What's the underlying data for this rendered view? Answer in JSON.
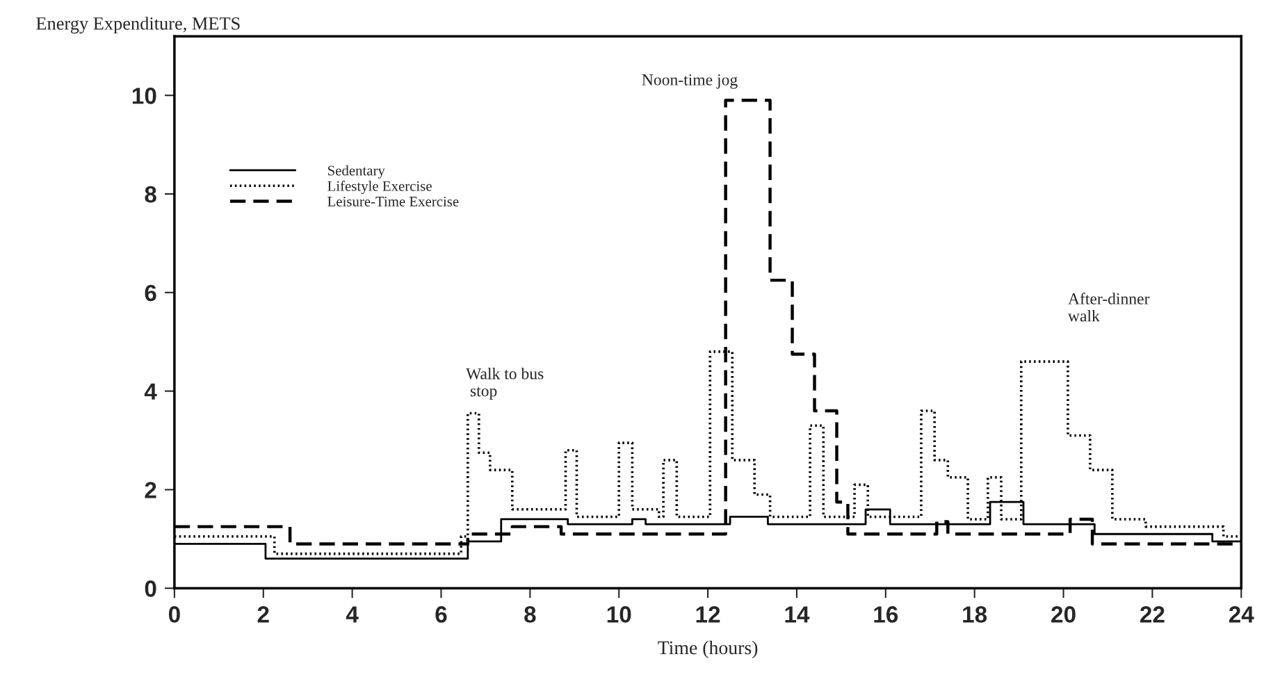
{
  "chart_data": {
    "type": "step",
    "ylabel": "Energy Expenditure, METS",
    "xlabel": "Time (hours)",
    "xlim": [
      0,
      24
    ],
    "xticks": [
      0,
      2,
      4,
      6,
      8,
      10,
      12,
      14,
      16,
      18,
      20,
      22,
      24
    ],
    "ylim": [
      0,
      11.2
    ],
    "yticks": [
      0,
      2,
      4,
      6,
      8,
      10
    ],
    "grid": false,
    "legend": "top left",
    "marker": "none",
    "series": [
      {
        "name": "Sedentary",
        "color": "#000000",
        "line_style": "solid",
        "x": [
          0,
          2.05,
          6.6,
          7.35,
          8.85,
          10.3,
          10.6,
          12.5,
          13.35,
          15.55,
          16.1,
          18.35,
          19.1,
          20.7,
          23.35,
          24
        ],
        "values": [
          0.9,
          0.6,
          0.95,
          1.4,
          1.3,
          1.4,
          1.3,
          1.45,
          1.3,
          1.6,
          1.3,
          1.75,
          1.3,
          1.1,
          0.95,
          0.95
        ]
      },
      {
        "name": "Lifestyle Exercise",
        "color": "#000000",
        "line_style": "dotted",
        "x": [
          0,
          2.25,
          6.45,
          6.6,
          6.85,
          7.1,
          7.6,
          8.8,
          9.05,
          10.0,
          10.3,
          10.9,
          11.0,
          11.3,
          12.05,
          12.55,
          13.05,
          13.4,
          14.3,
          14.6,
          15.3,
          15.6,
          16.8,
          17.1,
          17.4,
          17.85,
          18.3,
          18.6,
          19.05,
          20.1,
          20.6,
          21.1,
          21.85,
          23.6,
          24
        ],
        "values": [
          1.05,
          0.7,
          1.05,
          3.55,
          2.75,
          2.4,
          1.6,
          2.8,
          1.45,
          2.95,
          1.6,
          1.45,
          2.6,
          1.45,
          4.8,
          2.6,
          1.9,
          1.45,
          3.3,
          1.45,
          2.1,
          1.45,
          3.6,
          2.6,
          2.25,
          1.4,
          2.25,
          1.4,
          4.6,
          3.1,
          2.4,
          1.4,
          1.25,
          1.05,
          1.05
        ]
      },
      {
        "name": "Leisure-Time Exercise",
        "color": "#000000",
        "line_style": "dashed",
        "x": [
          0,
          2.6,
          6.6,
          7.6,
          8.7,
          12.4,
          13.4,
          13.9,
          14.4,
          14.9,
          15.15,
          17.15,
          17.4,
          20.15,
          20.65,
          24
        ],
        "values": [
          1.25,
          0.9,
          1.1,
          1.25,
          1.1,
          9.9,
          6.25,
          4.75,
          3.6,
          1.75,
          1.1,
          1.35,
          1.1,
          1.4,
          0.9,
          0.9
        ]
      }
    ],
    "annotations": [
      {
        "text": "Walk to bus\n stop",
        "x": 6.6,
        "y": 3.55
      },
      {
        "text": "Noon-time jog",
        "x": 12.9,
        "y": 9.9
      },
      {
        "text": "After-dinner\nwalk",
        "x": 20.1,
        "y": 4.6
      }
    ]
  }
}
